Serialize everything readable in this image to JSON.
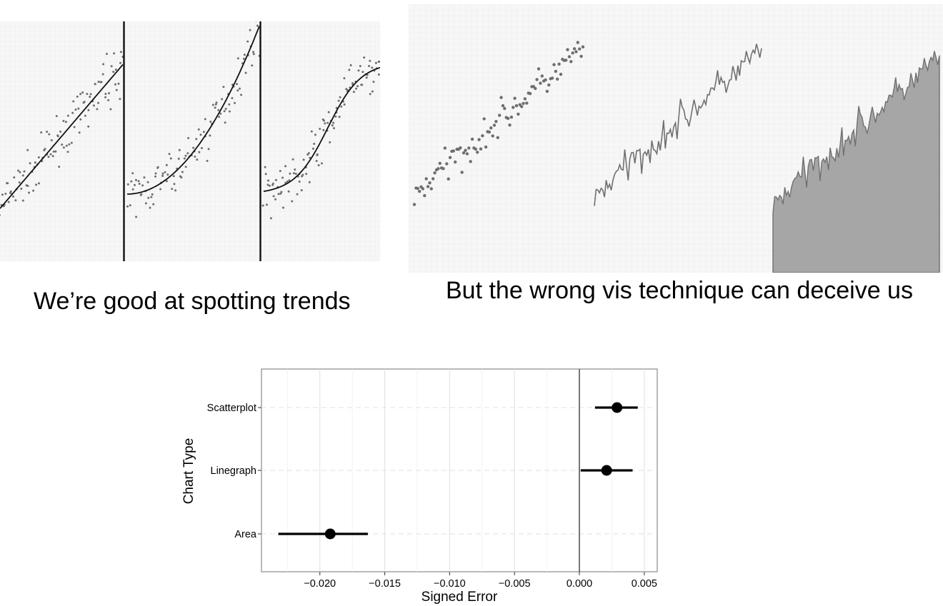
{
  "captions": {
    "left": "We’re good at spotting trends",
    "right": "But the wrong vis technique can deceive us"
  },
  "colors": {
    "dots": "#6e6e6e",
    "line": "#707070",
    "area_fill": "#a6a6a6",
    "grid": "#e6e6e6",
    "point": "#000000"
  },
  "chart_data": [
    {
      "type": "scatter",
      "subtype": "small-multiples",
      "panels": [
        {
          "trend": "linear"
        },
        {
          "trend": "quadratic"
        },
        {
          "trend": "sigmoid"
        }
      ]
    },
    {
      "type": "scatter",
      "subtype": "same-data-three-encodings",
      "panels": [
        {
          "encoding": "scatter"
        },
        {
          "encoding": "line"
        },
        {
          "encoding": "area"
        }
      ]
    },
    {
      "type": "scatter",
      "subtype": "dot-and-interval",
      "xlabel": "Signed Error",
      "ylabel": "Chart Type",
      "categories": [
        "Scatterplot",
        "Linegraph",
        "Area"
      ],
      "values": [
        0.0029,
        0.0021,
        -0.0192
      ],
      "ci_low": [
        0.0012,
        0.0001,
        -0.0232
      ],
      "ci_high": [
        0.0045,
        0.0041,
        -0.0163
      ],
      "xlim": [
        -0.0245,
        0.006
      ],
      "xticks": [
        "−0.020",
        "−0.015",
        "−0.010",
        "−0.005",
        "0.000",
        "0.005"
      ],
      "xtick_values": [
        -0.02,
        -0.015,
        -0.01,
        -0.005,
        0,
        0.005
      ],
      "reference_line": 0,
      "grid": true
    }
  ]
}
